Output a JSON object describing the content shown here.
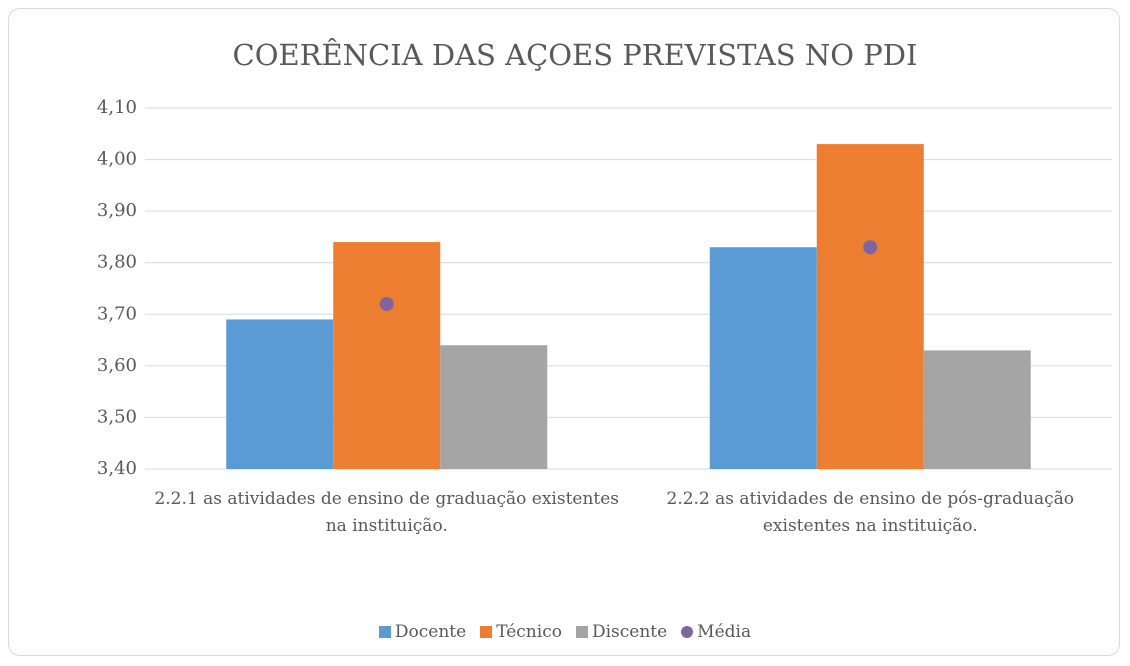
{
  "chart_data": {
    "type": "bar",
    "title": "COERÊNCIA DAS AÇOES PREVISTAS NO PDI",
    "categories": [
      "2.2.1 as atividades de ensino de graduação existentes na instituição.",
      "2.2.2 as atividades de ensino de pós-graduação existentes na instituição."
    ],
    "series": [
      {
        "name": "Docente",
        "color": "#5b9bd5",
        "values": [
          3.69,
          3.83
        ]
      },
      {
        "name": "Técnico",
        "color": "#ed7d31",
        "values": [
          3.84,
          4.03
        ]
      },
      {
        "name": "Discente",
        "color": "#a5a5a5",
        "values": [
          3.64,
          3.63
        ]
      },
      {
        "name": "Média",
        "color": "#8064a2",
        "type": "scatter",
        "values": [
          3.72,
          3.83
        ]
      }
    ],
    "ylim": [
      3.4,
      4.1
    ],
    "yticks": [
      {
        "value": 3.4,
        "label": "3,40"
      },
      {
        "value": 3.5,
        "label": "3,50"
      },
      {
        "value": 3.6,
        "label": "3,60"
      },
      {
        "value": 3.7,
        "label": "3,70"
      },
      {
        "value": 3.8,
        "label": "3,80"
      },
      {
        "value": 3.9,
        "label": "3,90"
      },
      {
        "value": 4.0,
        "label": "4,00"
      },
      {
        "value": 4.1,
        "label": "4,10"
      }
    ],
    "grid": true,
    "legend": "bottom"
  }
}
